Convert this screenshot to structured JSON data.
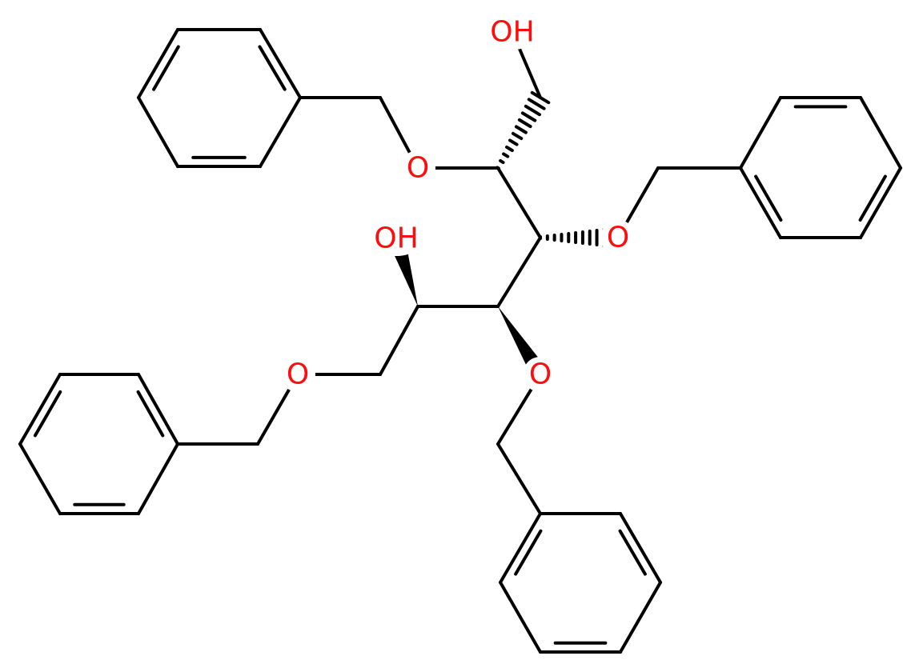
{
  "atoms": {
    "labels": [
      "OH",
      "O",
      "O",
      "O",
      "OH",
      "O"
    ]
  }
}
